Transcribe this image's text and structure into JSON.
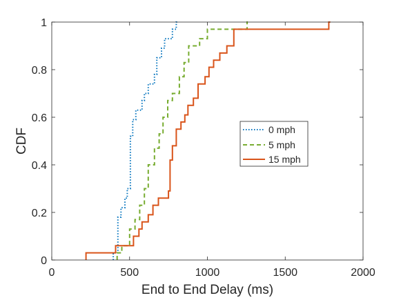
{
  "chart_data": {
    "type": "line",
    "title": "",
    "xlabel": "End to End Delay (ms)",
    "ylabel": "CDF",
    "xlim": [
      0,
      2000
    ],
    "ylim": [
      0,
      1
    ],
    "xticks": [
      0,
      500,
      1000,
      1500,
      2000
    ],
    "yticks": [
      0,
      0.2,
      0.4,
      0.6,
      0.8,
      1
    ],
    "xtick_labels": [
      "0",
      "500",
      "1000",
      "1500",
      "2000"
    ],
    "ytick_labels": [
      "0",
      "0.2",
      "0.4",
      "0.6",
      "0.8",
      "1"
    ],
    "grid": false,
    "legend_position": "center-right",
    "series": [
      {
        "name": "0 mph",
        "color": "#0072BD",
        "style": "dotted",
        "x": [
          395,
          395,
          425,
          425,
          445,
          445,
          470,
          470,
          485,
          485,
          505,
          505,
          520,
          520,
          540,
          540,
          580,
          580,
          595,
          595,
          620,
          620,
          660,
          660,
          675,
          675,
          705,
          705,
          725,
          725,
          775,
          775,
          800,
          800,
          815
        ],
        "y": [
          0,
          0.03,
          0.03,
          0.18,
          0.18,
          0.22,
          0.22,
          0.26,
          0.26,
          0.3,
          0.3,
          0.52,
          0.52,
          0.59,
          0.59,
          0.63,
          0.63,
          0.67,
          0.67,
          0.7,
          0.7,
          0.74,
          0.74,
          0.78,
          0.78,
          0.85,
          0.85,
          0.89,
          0.89,
          0.93,
          0.93,
          0.97,
          0.97,
          1.0,
          1.0
        ]
      },
      {
        "name": "5 mph",
        "color": "#77AC30",
        "style": "dashed",
        "x": [
          420,
          420,
          450,
          450,
          500,
          500,
          535,
          535,
          565,
          565,
          595,
          595,
          620,
          620,
          660,
          660,
          690,
          690,
          715,
          715,
          745,
          745,
          775,
          775,
          820,
          820,
          850,
          850,
          880,
          880,
          950,
          950,
          1000,
          1000,
          1080,
          1080,
          1245,
          1245,
          1255,
          1255,
          1260
        ],
        "y": [
          0,
          0.03,
          0.03,
          0.06,
          0.06,
          0.13,
          0.13,
          0.17,
          0.17,
          0.23,
          0.23,
          0.3,
          0.3,
          0.4,
          0.4,
          0.47,
          0.47,
          0.53,
          0.53,
          0.6,
          0.6,
          0.67,
          0.67,
          0.7,
          0.7,
          0.77,
          0.77,
          0.83,
          0.83,
          0.9,
          0.9,
          0.93,
          0.93,
          0.97,
          0.97,
          0.97,
          0.97,
          0.97,
          0.97,
          1.0,
          1.0
        ]
      },
      {
        "name": "15 mph",
        "color": "#D95319",
        "style": "solid",
        "x": [
          220,
          220,
          410,
          410,
          525,
          525,
          560,
          560,
          580,
          580,
          620,
          620,
          650,
          650,
          685,
          685,
          700,
          700,
          750,
          750,
          760,
          760,
          775,
          775,
          800,
          800,
          830,
          830,
          855,
          855,
          875,
          875,
          910,
          910,
          940,
          940,
          985,
          985,
          1010,
          1010,
          1040,
          1040,
          1080,
          1080,
          1125,
          1125,
          1170,
          1170,
          1780,
          1780,
          1790
        ],
        "y": [
          0,
          0.03,
          0.03,
          0.06,
          0.06,
          0.1,
          0.1,
          0.13,
          0.13,
          0.16,
          0.16,
          0.19,
          0.19,
          0.23,
          0.23,
          0.26,
          0.26,
          0.26,
          0.26,
          0.29,
          0.29,
          0.42,
          0.42,
          0.48,
          0.48,
          0.55,
          0.55,
          0.58,
          0.58,
          0.61,
          0.61,
          0.65,
          0.65,
          0.68,
          0.68,
          0.74,
          0.74,
          0.77,
          0.77,
          0.81,
          0.81,
          0.84,
          0.84,
          0.87,
          0.87,
          0.9,
          0.9,
          0.97,
          0.97,
          1.0,
          1.0
        ]
      }
    ]
  }
}
